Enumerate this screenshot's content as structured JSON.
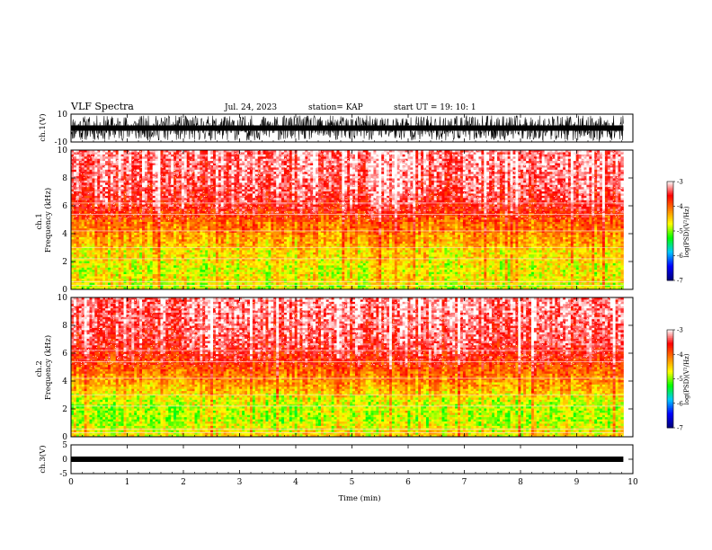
{
  "header": {
    "title": "VLF Spectra",
    "date": "Jul. 24, 2023",
    "station": "station= KAP",
    "start": "start UT = 19: 10: 1"
  },
  "chart_data": [
    {
      "type": "line",
      "name": "ch.1 waveform",
      "ylabel": "ch.1(V)",
      "ylim": [
        -10,
        10
      ],
      "yticks": [
        10,
        -10
      ],
      "xlim": [
        0,
        10
      ],
      "x_extent": [
        0,
        9.83
      ],
      "amplitude_range": [
        -9,
        9
      ]
    },
    {
      "type": "heatmap",
      "name": "ch.1 spectrogram",
      "ylabel": "ch.1\nFrequency (kHz)",
      "ylim": [
        0,
        10
      ],
      "yticks": [
        0,
        2,
        4,
        6,
        8,
        10
      ],
      "xlim": [
        0,
        10
      ],
      "x_extent": [
        0,
        9.83
      ],
      "psd_profile_freq_khz": [
        0.25,
        0.75,
        1.25,
        1.75,
        2.25,
        2.75,
        3.25,
        3.75,
        4.25,
        4.75,
        5.5,
        6.5,
        7.5,
        8.5,
        9.5
      ],
      "psd_profile_log10": [
        -4.8,
        -4.6,
        -4.75,
        -4.7,
        -4.55,
        -4.6,
        -4.35,
        -4.3,
        -4.1,
        -4.05,
        -3.7,
        -3.45,
        -3.35,
        -3.3,
        -3.25
      ],
      "colorbar": {
        "label": "log(PSD)(V²/Hz)",
        "range": [
          -7,
          -3
        ],
        "ticks": [
          -3,
          -4,
          -5,
          -6,
          -7
        ]
      }
    },
    {
      "type": "heatmap",
      "name": "ch.2 spectrogram",
      "ylabel": "ch.2\nFrequency (kHz)",
      "ylim": [
        0,
        10
      ],
      "yticks": [
        0,
        2,
        4,
        6,
        8,
        10
      ],
      "xlim": [
        0,
        10
      ],
      "x_extent": [
        0,
        9.83
      ],
      "psd_profile_freq_khz": [
        0.25,
        0.75,
        1.25,
        1.75,
        2.25,
        2.75,
        3.25,
        3.75,
        4.25,
        4.75,
        5.5,
        6.5,
        7.5,
        8.5,
        9.5
      ],
      "psd_profile_log10": [
        -4.6,
        -4.75,
        -4.9,
        -4.85,
        -4.8,
        -4.7,
        -4.45,
        -4.3,
        -4.15,
        -4.0,
        -3.7,
        -3.45,
        -3.35,
        -3.3,
        -3.25
      ],
      "colorbar": {
        "label": "log(PSD)(V²/Hz)",
        "range": [
          -7,
          -3
        ],
        "ticks": [
          -3,
          -4,
          -5,
          -6,
          -7
        ]
      }
    },
    {
      "type": "line",
      "name": "ch.3 waveform",
      "ylabel": "ch.3(V)",
      "ylim": [
        -5,
        5
      ],
      "yticks": [
        5,
        0,
        -5
      ],
      "xlim": [
        0,
        10
      ],
      "x_extent": [
        0,
        9.83
      ],
      "amplitude_range": [
        -0.6,
        0.6
      ],
      "xlabel": "Time (min)",
      "xticks": [
        0,
        1,
        2,
        3,
        4,
        5,
        6,
        7,
        8,
        9,
        10
      ]
    }
  ],
  "colors": {
    "waveform": "#000000",
    "colormap": [
      "#00007a",
      "#0000ff",
      "#00c8ff",
      "#00ff00",
      "#ffff00",
      "#ff8000",
      "#ff0000",
      "#ffffff"
    ]
  }
}
